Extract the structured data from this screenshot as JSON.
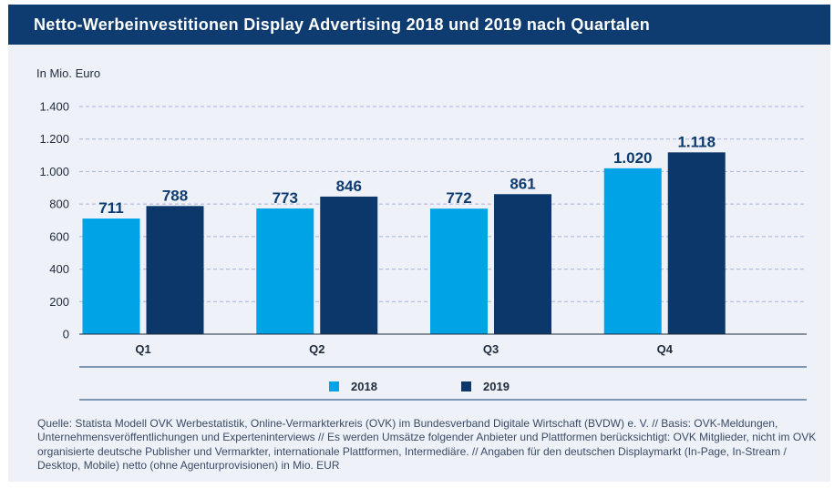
{
  "title": "Netto-Werbeinvestitionen Display Advertising 2018 und 2019 nach Quartalen",
  "unit_label": "In Mio. Euro",
  "colors": {
    "title_bg": "#0f3c70",
    "series_2018": "#00a3e6",
    "series_2019": "#0b376a",
    "background": "#eef2f8"
  },
  "chart_data": {
    "type": "bar",
    "title": "Netto-Werbeinvestitionen Display Advertising 2018 und 2019 nach Quartalen",
    "ylabel": "In Mio. Euro",
    "xlabel": "",
    "categories": [
      "Q1",
      "Q2",
      "Q3",
      "Q4"
    ],
    "series": [
      {
        "name": "2018",
        "values": [
          711,
          773,
          772,
          1020
        ],
        "labels": [
          "711",
          "773",
          "772",
          "1.020"
        ]
      },
      {
        "name": "2019",
        "values": [
          788,
          846,
          861,
          1118
        ],
        "labels": [
          "788",
          "846",
          "861",
          "1.118"
        ]
      }
    ],
    "yticks": [
      0,
      200,
      400,
      600,
      800,
      1000,
      1200,
      1400
    ],
    "ytick_labels": [
      "0",
      "200",
      "400",
      "600",
      "800",
      "1.000",
      "1.200",
      "1.400"
    ],
    "ylim": [
      0,
      1400
    ],
    "grid": true,
    "legend": "bottom-center"
  },
  "source_text": "Quelle: Statista Modell OVK Werbestatistik, Online-Vermarkterkreis (OVK) im Bundesverband Digitale Wirtschaft (BVDW) e. V. // Basis: OVK-Meldungen, Unternehmensveröffentlichungen und Experteninterviews // Es werden Umsätze folgender Anbieter und Plattformen berücksichtigt: OVK Mitglieder, nicht im OVK organisierte deutsche Publisher und Vermarkter, internationale Plattformen, Intermediäre. // Angaben für den deutschen Displaymarkt (In-Page, In-Stream / Desktop, Mobile) netto (ohne Agenturprovisionen) in Mio. EUR"
}
